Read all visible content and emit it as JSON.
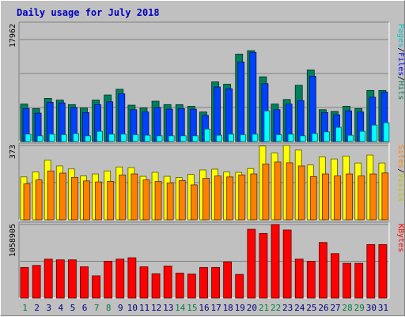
{
  "chart_data": [
    {
      "type": "bar",
      "title": "Daily usage for July 2018",
      "ylabel_parts": [
        "Pages",
        "Files",
        "Hits"
      ],
      "ymax_label": "17962",
      "ylim": [
        0,
        17962
      ],
      "categories": [
        "1",
        "2",
        "3",
        "4",
        "5",
        "6",
        "7",
        "8",
        "9",
        "10",
        "11",
        "12",
        "13",
        "14",
        "15",
        "16",
        "17",
        "18",
        "19",
        "20",
        "21",
        "22",
        "23",
        "24",
        "25",
        "26",
        "27",
        "28",
        "29",
        "30",
        "31"
      ],
      "weekend_days": [
        "1",
        "7",
        "8",
        "14",
        "15",
        "21",
        "22",
        "28",
        "29"
      ],
      "grid": true,
      "series": [
        {
          "name": "Hits",
          "color": "#00805c",
          "values": [
            6600,
            5800,
            7600,
            7300,
            6500,
            5900,
            7300,
            8200,
            9200,
            6400,
            5900,
            7100,
            6500,
            6500,
            6200,
            5200,
            10500,
            10100,
            15400,
            16000,
            11400,
            6600,
            7400,
            9900,
            12600,
            5600,
            5300,
            6200,
            5800,
            9000,
            9000
          ]
        },
        {
          "name": "Files",
          "color": "#0040ff",
          "values": [
            5800,
            5000,
            6900,
            6800,
            6000,
            5100,
            6500,
            7000,
            8400,
            5600,
            5200,
            6000,
            5700,
            5800,
            5700,
            4600,
            9600,
            9300,
            14000,
            15700,
            10200,
            5600,
            6600,
            7200,
            11500,
            5100,
            4700,
            5400,
            5200,
            7800,
            8700
          ]
        },
        {
          "name": "Pages",
          "color": "#00ffff",
          "values": [
            1300,
            1000,
            1300,
            1200,
            1400,
            1000,
            1800,
            1300,
            1300,
            1200,
            1100,
            1000,
            1000,
            1000,
            1000,
            2200,
            1100,
            1300,
            1200,
            1300,
            5400,
            1200,
            1300,
            1000,
            1400,
            1700,
            2500,
            1100,
            1800,
            2900,
            3300
          ]
        }
      ]
    },
    {
      "type": "bar",
      "ylabel_parts": [
        "Sites",
        "Visits"
      ],
      "ymax_label": "373",
      "ylim": [
        0,
        373
      ],
      "categories": [
        "1",
        "2",
        "3",
        "4",
        "5",
        "6",
        "7",
        "8",
        "9",
        "10",
        "11",
        "12",
        "13",
        "14",
        "15",
        "16",
        "17",
        "18",
        "19",
        "20",
        "21",
        "22",
        "23",
        "24",
        "25",
        "26",
        "27",
        "28",
        "29",
        "30",
        "31"
      ],
      "grid": true,
      "series": [
        {
          "name": "Visits",
          "color": "#ffff00",
          "values": [
            215,
            240,
            300,
            270,
            255,
            220,
            230,
            245,
            265,
            262,
            218,
            238,
            218,
            212,
            228,
            250,
            254,
            240,
            238,
            257,
            370,
            335,
            373,
            350,
            275,
            315,
            305,
            320,
            285,
            325,
            285
          ]
        },
        {
          "name": "Sites",
          "color": "#ff8000",
          "values": [
            180,
            200,
            245,
            234,
            213,
            195,
            190,
            193,
            225,
            230,
            200,
            192,
            185,
            197,
            175,
            208,
            220,
            215,
            225,
            230,
            280,
            290,
            286,
            270,
            217,
            230,
            220,
            230,
            220,
            230,
            235
          ]
        }
      ]
    },
    {
      "type": "bar",
      "ylabel_parts": [
        "KBytes"
      ],
      "ymax_label": "1058905",
      "ylim": [
        0,
        1058905
      ],
      "categories": [
        "1",
        "2",
        "3",
        "4",
        "5",
        "6",
        "7",
        "8",
        "9",
        "10",
        "11",
        "12",
        "13",
        "14",
        "15",
        "16",
        "17",
        "18",
        "19",
        "20",
        "21",
        "22",
        "23",
        "24",
        "25",
        "26",
        "27",
        "28",
        "29",
        "30",
        "31"
      ],
      "grid": true,
      "series": [
        {
          "name": "KBytes",
          "color": "#ff0000",
          "values": [
            440000,
            470000,
            560000,
            550000,
            550000,
            450000,
            320000,
            530000,
            560000,
            580000,
            450000,
            350000,
            460000,
            360000,
            345000,
            440000,
            440000,
            520000,
            340000,
            990000,
            930000,
            1058905,
            980000,
            560000,
            530000,
            800000,
            640000,
            500000,
            500000,
            770000,
            770000
          ]
        }
      ]
    }
  ]
}
